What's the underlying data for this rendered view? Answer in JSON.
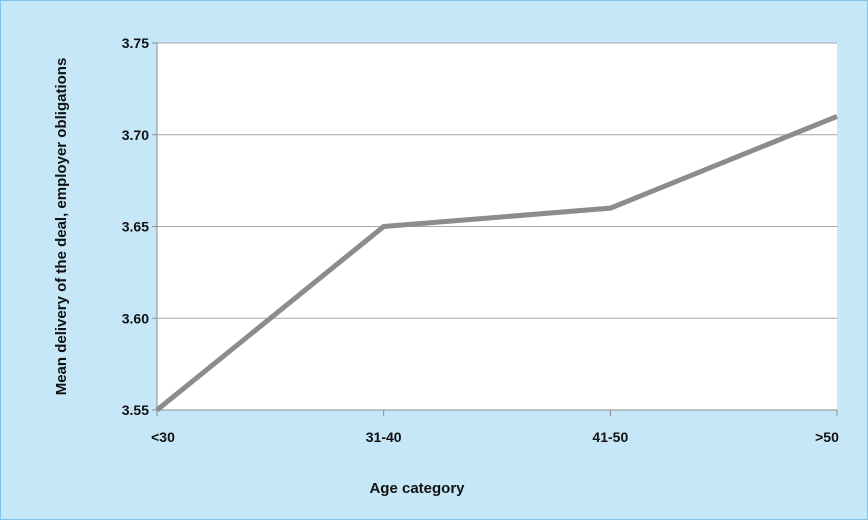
{
  "chart_data": {
    "type": "line",
    "title": "",
    "xlabel": "Age category",
    "ylabel": "Mean delivery of the deal, employer obligations",
    "categories": [
      "<30",
      "31-40",
      "41-50",
      ">50"
    ],
    "series": [
      {
        "values": [
          3.55,
          3.65,
          3.66,
          3.71
        ]
      }
    ],
    "ylim": [
      3.55,
      3.75
    ],
    "yticks": [
      3.55,
      3.6,
      3.65,
      3.7,
      3.75
    ],
    "ytick_labels": [
      "3.55",
      "3.60",
      "3.65",
      "3.70",
      "3.75"
    ],
    "grid": true,
    "legend": "none"
  },
  "colors": {
    "background": "#c5e7f7",
    "plot_area": "#ffffff",
    "line": "#8c8c8c",
    "grid": "#a6a6a6"
  }
}
